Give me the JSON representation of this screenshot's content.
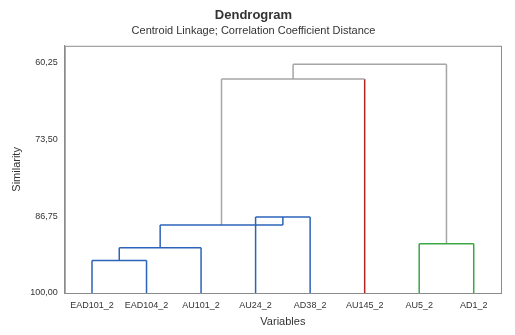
{
  "chart_data": {
    "type": "dendrogram",
    "title": "Dendrogram",
    "subtitle": "Centroid Linkage; Correlation Coefficient Distance",
    "x_label": "Variables",
    "y_label": "Similarity",
    "leaves": [
      "EAD101_2",
      "EAD104_2",
      "AU101_2",
      "AU24_2",
      "AD38_2",
      "AU145_2",
      "AU5_2",
      "AD1_2"
    ],
    "colors": [
      "#2d63b8",
      "#2d63b8",
      "#2d63b8",
      "#2d63b8",
      "#2d63b8",
      "#b22222",
      "#3aa845",
      "#3aa845"
    ],
    "merges": [
      {
        "left": 0,
        "right": 1,
        "similarity": 94.4,
        "color": "#2d63b8"
      },
      {
        "left": 8,
        "right": 2,
        "similarity": 92.2,
        "color": "#2d63b8"
      },
      {
        "left": 3,
        "right": 4,
        "similarity": 86.9,
        "color": "#2d63b8"
      },
      {
        "left": 9,
        "right": 10,
        "similarity": 88.3,
        "color": "#2d63b8"
      },
      {
        "left": 6,
        "right": 7,
        "similarity": 91.5,
        "color": "#3aa845"
      },
      {
        "left": 11,
        "right": 5,
        "similarity": 63.1,
        "color": "#a6a6a6"
      },
      {
        "left": 13,
        "right": 12,
        "similarity": 60.6,
        "color": "#a6a6a6"
      }
    ],
    "ylim": [
      57.4,
      100
    ],
    "yticks": [
      {
        "value": 60.25,
        "label": "60,25"
      },
      {
        "value": 73.5,
        "label": "73,50"
      },
      {
        "value": 86.75,
        "label": "86,75"
      },
      {
        "value": 100,
        "label": "100,00"
      }
    ],
    "grid": false
  }
}
